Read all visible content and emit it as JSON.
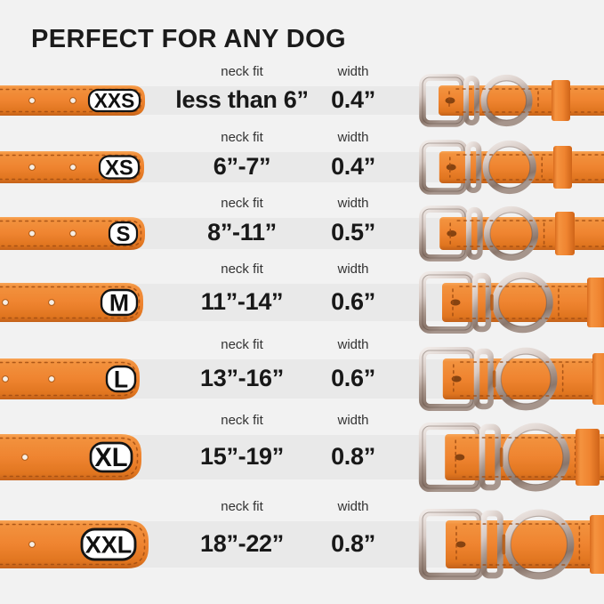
{
  "title": "PERFECT FOR ANY DOG",
  "columns": {
    "neck_fit_label": "neck fit",
    "width_label": "width"
  },
  "rows": [
    {
      "size": "XXS",
      "neck_fit": "less than 6”",
      "width": "0.4”"
    },
    {
      "size": "XS",
      "neck_fit": "6”-7”",
      "width": "0.4”"
    },
    {
      "size": "S",
      "neck_fit": "8”-11”",
      "width": "0.5”"
    },
    {
      "size": "M",
      "neck_fit": "11”-14”",
      "width": "0.6”"
    },
    {
      "size": "L",
      "neck_fit": "13”-16”",
      "width": "0.6”"
    },
    {
      "size": "XL",
      "neck_fit": "15”-19”",
      "width": "0.8”"
    },
    {
      "size": "XXL",
      "neck_fit": "18”-22”",
      "width": "0.8”"
    }
  ],
  "icons": {
    "left_graphic": "collar-strap-graphic",
    "right_graphic": "collar-buckle-graphic"
  },
  "colors": {
    "background": "#f2f2f2",
    "row_band": "#e9e9e9",
    "collar_orange": "#ef8430",
    "collar_orange_dark": "#c96217",
    "stitch": "#a04c12",
    "metal_silver": "#cfc3be",
    "badge_background": "#ffffff",
    "badge_border": "#141414",
    "text": "#1b1b1b"
  }
}
